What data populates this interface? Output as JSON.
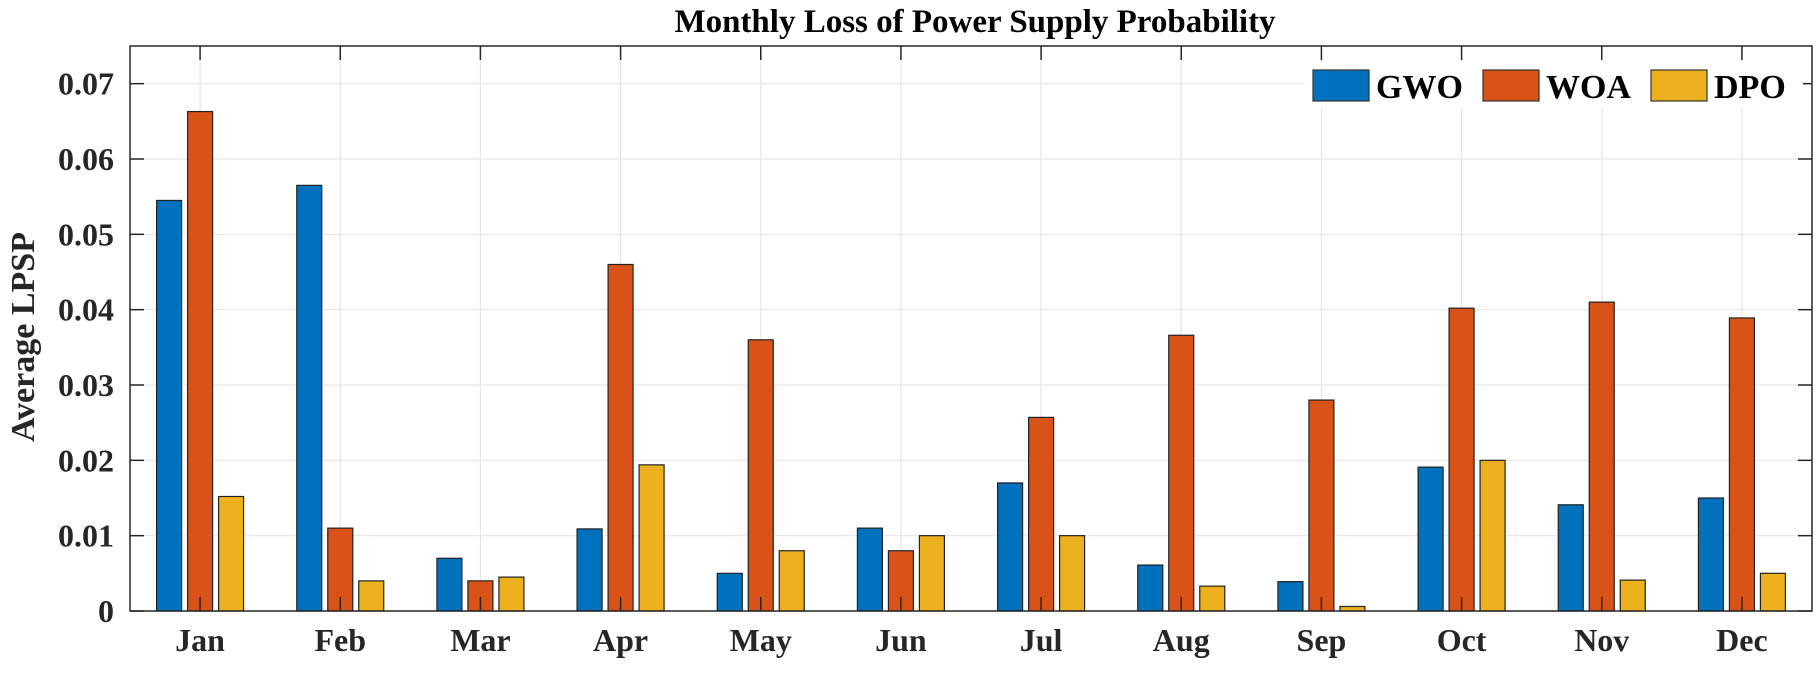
{
  "chart_data": {
    "type": "bar",
    "title": "Monthly Loss of Power Supply Probability",
    "xlabel": "",
    "ylabel": "Average LPSP",
    "categories": [
      "Jan",
      "Feb",
      "Mar",
      "Apr",
      "May",
      "Jun",
      "Jul",
      "Aug",
      "Sep",
      "Oct",
      "Nov",
      "Dec"
    ],
    "series": [
      {
        "name": "GWO",
        "color": "#0072BD",
        "values": [
          0.0545,
          0.0565,
          0.007,
          0.0109,
          0.005,
          0.011,
          0.017,
          0.0061,
          0.0039,
          0.0191,
          0.0141,
          0.015
        ]
      },
      {
        "name": "WOA",
        "color": "#D95319",
        "values": [
          0.0663,
          0.011,
          0.004,
          0.046,
          0.036,
          0.008,
          0.0257,
          0.0366,
          0.028,
          0.0402,
          0.041,
          0.0389
        ]
      },
      {
        "name": "DPO",
        "color": "#EDB120",
        "values": [
          0.0152,
          0.004,
          0.0045,
          0.0194,
          0.008,
          0.01,
          0.01,
          0.0033,
          0.0006,
          0.02,
          0.0041,
          0.005
        ]
      }
    ],
    "ylim": [
      0,
      0.075
    ],
    "yticks": [
      0,
      0.01,
      0.02,
      0.03,
      0.04,
      0.05,
      0.06,
      0.07
    ],
    "ytick_labels": [
      "0",
      "0.01",
      "0.02",
      "0.03",
      "0.04",
      "0.05",
      "0.06",
      "0.07"
    ],
    "grid": true,
    "legend": {
      "placement": "top-right",
      "orientation": "horizontal",
      "entries": [
        "GWO",
        "WOA",
        "DPO"
      ]
    }
  }
}
